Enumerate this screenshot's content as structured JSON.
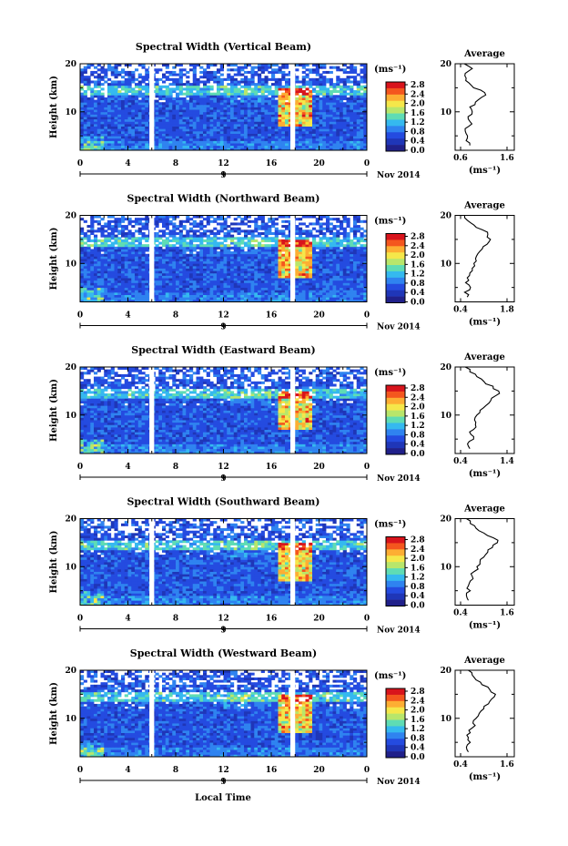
{
  "figure": {
    "xlabel": "Local Time",
    "date_label": "Nov 2014",
    "day_label": "9",
    "colorbar_unit": "(ms⁻¹)",
    "colorbar_ticks": [
      "2.8",
      "2.4",
      "2.0",
      "1.6",
      "1.2",
      "0.8",
      "0.4",
      "0.0"
    ],
    "colorbar_colors": [
      "#d8141c",
      "#f4561e",
      "#fdae33",
      "#f5e74a",
      "#b8e66b",
      "#5fdcb4",
      "#35b9ef",
      "#2f83f0",
      "#244be0",
      "#1f36b8",
      "#20208a"
    ],
    "profile_title": "Average",
    "profile_unit": "(ms⁻¹)"
  },
  "chart_data": [
    {
      "type": "heatmap",
      "title": "Spectral Width (Vertical Beam)",
      "ylabel": "Height (km)",
      "xlabel": "Local Time",
      "x_ticks": [
        "0",
        "4",
        "8",
        "12",
        "16",
        "20",
        "0"
      ],
      "y_ticks": [
        "20",
        "10"
      ],
      "xlim": [
        0,
        24
      ],
      "ylim": [
        2,
        20
      ],
      "gaps_hours": [
        [
          5.8,
          6.2
        ],
        [
          17.6,
          18.0
        ]
      ],
      "colorbar_range": [
        0.0,
        3.0
      ],
      "profile": {
        "title": "Average",
        "xlabel": "(ms⁻¹)",
        "x_ticks": [
          "0.6",
          "1.6"
        ],
        "xlim": [
          0.6,
          1.6
        ],
        "y_ticks": [
          "20",
          "10"
        ],
        "heights": [
          3,
          4,
          5,
          6,
          7,
          8,
          9,
          10,
          11,
          12,
          13,
          14,
          15,
          16,
          17,
          18,
          19,
          20
        ],
        "values": [
          0.8,
          0.72,
          0.75,
          0.7,
          0.78,
          0.8,
          0.76,
          0.85,
          0.8,
          0.92,
          1.05,
          1.12,
          0.88,
          0.78,
          0.72,
          0.7,
          0.85,
          0.68
        ]
      }
    },
    {
      "type": "heatmap",
      "title": "Spectral Width (Northward Beam)",
      "ylabel": "Height (km)",
      "xlabel": "Local Time",
      "x_ticks": [
        "0",
        "4",
        "8",
        "12",
        "16",
        "20",
        "0"
      ],
      "y_ticks": [
        "20",
        "10"
      ],
      "xlim": [
        0,
        24
      ],
      "ylim": [
        2,
        20
      ],
      "gaps_hours": [
        [
          5.8,
          6.2
        ],
        [
          17.6,
          18.0
        ]
      ],
      "colorbar_range": [
        0.0,
        3.0
      ],
      "profile": {
        "title": "Average",
        "xlabel": "(ms⁻¹)",
        "x_ticks": [
          "0.4",
          "1.8"
        ],
        "xlim": [
          0.4,
          1.8
        ],
        "y_ticks": [
          "20",
          "10"
        ],
        "heights": [
          3,
          4,
          5,
          6,
          7,
          8,
          9,
          10,
          11,
          12,
          13,
          14,
          15,
          16,
          17,
          18,
          19,
          20
        ],
        "values": [
          0.6,
          0.52,
          0.7,
          0.55,
          0.6,
          0.68,
          0.75,
          0.8,
          0.85,
          0.92,
          1.05,
          1.2,
          1.3,
          1.22,
          1.05,
          0.8,
          0.6,
          0.52
        ]
      }
    },
    {
      "type": "heatmap",
      "title": "Spectral Width (Eastward Beam)",
      "ylabel": "Height (km)",
      "xlabel": "Local Time",
      "x_ticks": [
        "0",
        "4",
        "8",
        "12",
        "16",
        "20",
        "0"
      ],
      "y_ticks": [
        "20",
        "10"
      ],
      "xlim": [
        0,
        24
      ],
      "ylim": [
        2,
        20
      ],
      "gaps_hours": [
        [
          5.8,
          6.2
        ],
        [
          17.6,
          18.0
        ]
      ],
      "colorbar_range": [
        0.0,
        3.0
      ],
      "profile": {
        "title": "Average",
        "xlabel": "(ms⁻¹)",
        "x_ticks": [
          "0.4",
          "1.4"
        ],
        "xlim": [
          0.4,
          1.4
        ],
        "y_ticks": [
          "20",
          "10"
        ],
        "heights": [
          3,
          4,
          5,
          6,
          7,
          8,
          9,
          10,
          11,
          12,
          13,
          14,
          15,
          16,
          17,
          18,
          19,
          20
        ],
        "values": [
          0.6,
          0.55,
          0.68,
          0.62,
          0.68,
          0.72,
          0.7,
          0.75,
          0.82,
          0.95,
          1.05,
          1.15,
          1.22,
          1.1,
          0.9,
          0.75,
          0.6,
          0.5
        ]
      }
    },
    {
      "type": "heatmap",
      "title": "Spectral Width (Southward Beam)",
      "ylabel": "Height (km)",
      "xlabel": "Local Time",
      "x_ticks": [
        "0",
        "4",
        "8",
        "12",
        "16",
        "20",
        "0"
      ],
      "y_ticks": [
        "20",
        "10"
      ],
      "xlim": [
        0,
        24
      ],
      "ylim": [
        2,
        20
      ],
      "gaps_hours": [
        [
          5.8,
          6.2
        ],
        [
          17.6,
          18.0
        ]
      ],
      "colorbar_range": [
        0.0,
        3.0
      ],
      "profile": {
        "title": "Average",
        "xlabel": "(ms⁻¹)",
        "x_ticks": [
          "0.4",
          "1.6"
        ],
        "xlim": [
          0.4,
          1.6
        ],
        "y_ticks": [
          "20",
          "10"
        ],
        "heights": [
          3,
          4,
          5,
          6,
          7,
          8,
          9,
          10,
          11,
          12,
          13,
          14,
          15,
          16,
          17,
          18,
          19,
          20
        ],
        "values": [
          0.6,
          0.55,
          0.65,
          0.6,
          0.65,
          0.7,
          0.75,
          0.82,
          0.9,
          1.0,
          1.1,
          1.22,
          1.35,
          1.25,
          1.0,
          0.8,
          0.65,
          0.55
        ]
      }
    },
    {
      "type": "heatmap",
      "title": "Spectral Width (Westward Beam)",
      "ylabel": "Height (km)",
      "xlabel": "Local Time",
      "x_ticks": [
        "0",
        "4",
        "8",
        "12",
        "16",
        "20",
        "0"
      ],
      "y_ticks": [
        "20",
        "10"
      ],
      "xlim": [
        0,
        24
      ],
      "ylim": [
        2,
        20
      ],
      "gaps_hours": [
        [
          5.8,
          6.2
        ],
        [
          17.6,
          18.0
        ]
      ],
      "colorbar_range": [
        0.0,
        3.0
      ],
      "profile": {
        "title": "Average",
        "xlabel": "(ms⁻¹)",
        "x_ticks": [
          "0.4",
          "1.6"
        ],
        "xlim": [
          0.4,
          1.6
        ],
        "y_ticks": [
          "20",
          "10"
        ],
        "heights": [
          3,
          4,
          5,
          6,
          7,
          8,
          9,
          10,
          11,
          12,
          13,
          14,
          15,
          16,
          17,
          18,
          19,
          20
        ],
        "values": [
          0.6,
          0.55,
          0.65,
          0.6,
          0.65,
          0.7,
          0.72,
          0.8,
          0.88,
          1.0,
          1.12,
          1.2,
          1.3,
          1.15,
          0.95,
          0.8,
          0.7,
          0.6
        ]
      }
    }
  ]
}
